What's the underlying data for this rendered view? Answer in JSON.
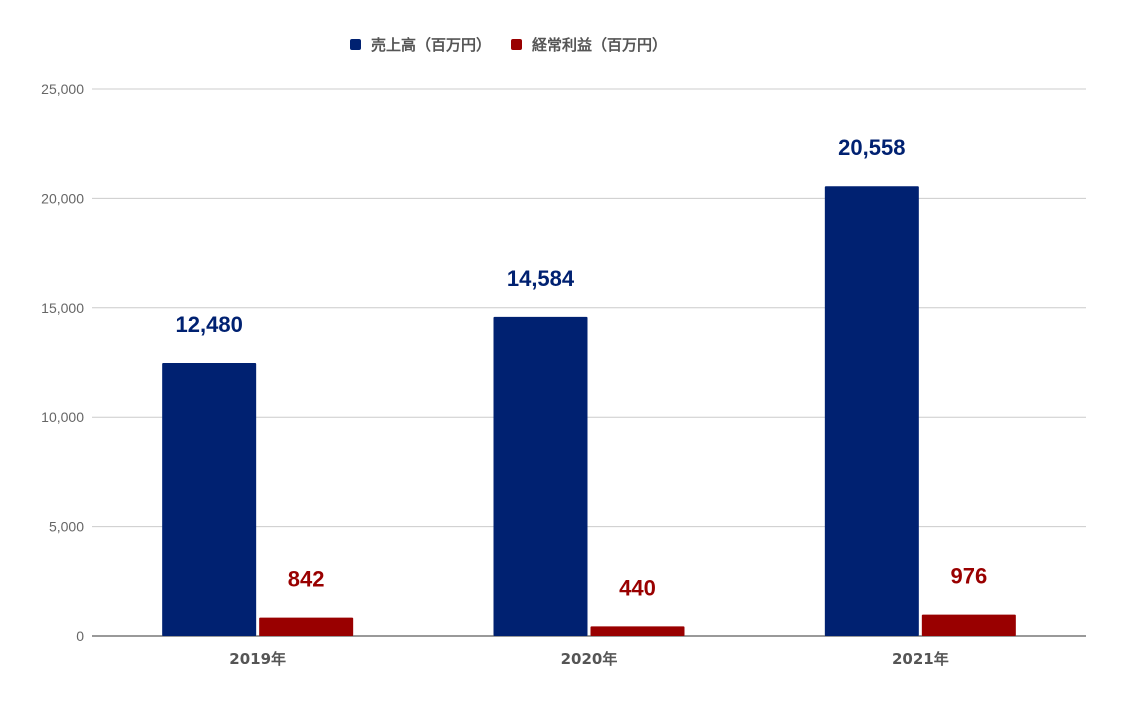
{
  "chart_data": {
    "type": "bar",
    "categories": [
      "2019年",
      "2020年",
      "2021年"
    ],
    "series": [
      {
        "name": "売上高（百万円）",
        "values": [
          12480,
          14584,
          20558
        ],
        "color": "#002171",
        "labels": [
          "12,480",
          "14,584",
          "20,558"
        ]
      },
      {
        "name": "経常利益（百万円）",
        "values": [
          842,
          440,
          976
        ],
        "color": "#990000",
        "labels": [
          "842",
          "440",
          "976"
        ]
      }
    ],
    "ylim": [
      0,
      25000
    ],
    "yticks": [
      0,
      5000,
      10000,
      15000,
      20000,
      25000
    ],
    "ytick_labels": [
      "0",
      "5,000",
      "10,000",
      "15,000",
      "20,000",
      "25,000"
    ],
    "title": "",
    "xlabel": "",
    "ylabel": "",
    "grid": true,
    "legend_position": "top-center"
  }
}
